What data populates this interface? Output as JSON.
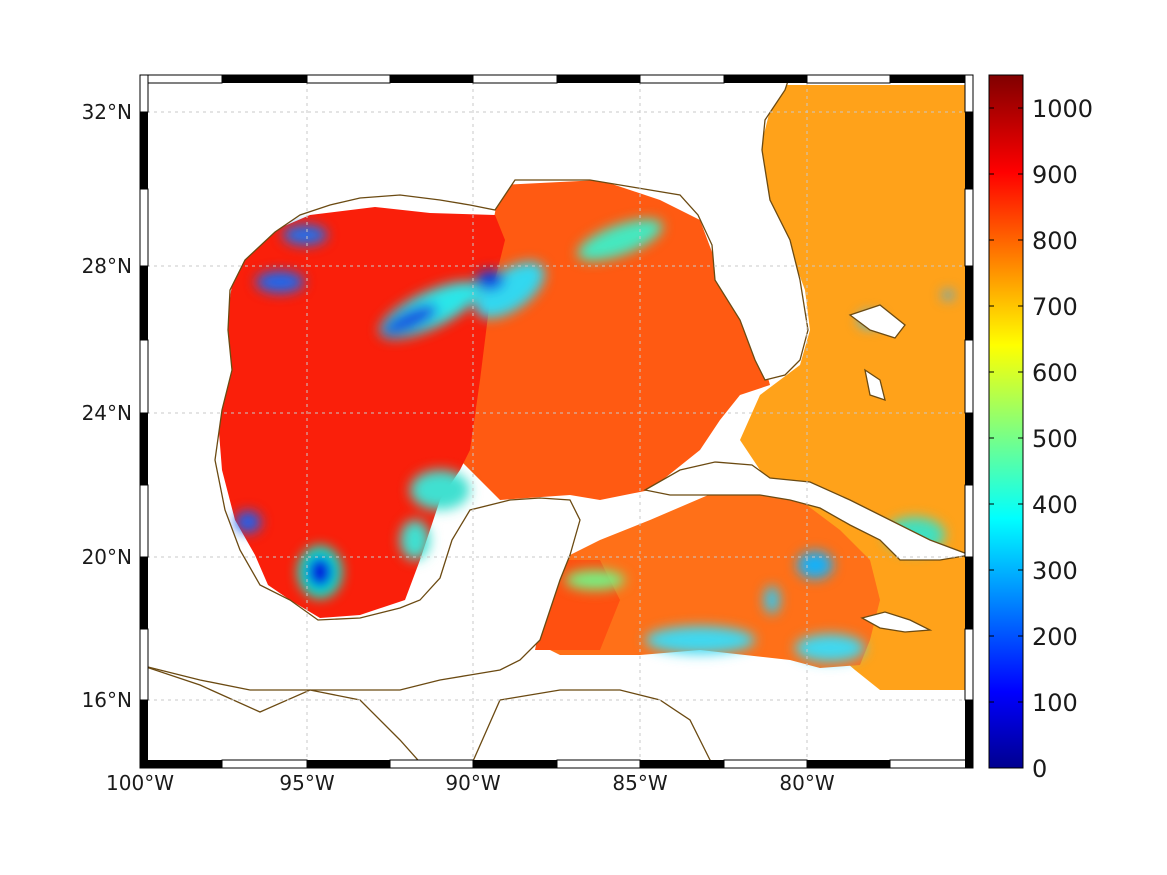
{
  "map": {
    "projection": "mercator",
    "lon_range": [
      -100,
      -75
    ],
    "lat_range": [
      14.2,
      33
    ],
    "grid": true,
    "frame": "black-white alternating border",
    "coastline_color": "#6b4a12",
    "land_color": "#ffffff",
    "x_ticks": [
      {
        "lon": -100,
        "label": "100°W"
      },
      {
        "lon": -95,
        "label": "95°W"
      },
      {
        "lon": -90,
        "label": "90°W"
      },
      {
        "lon": -85,
        "label": "85°W"
      },
      {
        "lon": -80,
        "label": "80°W"
      }
    ],
    "y_ticks": [
      {
        "lat": 32,
        "label": "32°N"
      },
      {
        "lat": 28,
        "label": "28°N"
      },
      {
        "lat": 24,
        "label": "24°N"
      },
      {
        "lat": 20,
        "label": "20°N"
      },
      {
        "lat": 16,
        "label": "16°N"
      }
    ]
  },
  "colorbar": {
    "colormap": "jet",
    "range": [
      0,
      1050
    ],
    "ticks": [
      "0",
      "100",
      "200",
      "300",
      "400",
      "500",
      "600",
      "700",
      "800",
      "900",
      "1000"
    ],
    "tick_values": [
      0,
      100,
      200,
      300,
      400,
      500,
      600,
      700,
      800,
      900,
      1000
    ]
  },
  "field": {
    "west_gulf_value": 920,
    "central_gulf_value": 860,
    "atlantic_value": 740,
    "caribbean_value": 800,
    "low_patches": [
      {
        "lon": -94.5,
        "lat": 19.6,
        "value": 150
      },
      {
        "lon": -91.2,
        "lat": 26.6,
        "value": 250
      },
      {
        "lon": -88.5,
        "lat": 27.2,
        "value": 330
      },
      {
        "lon": -95.5,
        "lat": 28.9,
        "value": 350
      },
      {
        "lon": -95.8,
        "lat": 27.7,
        "value": 300
      },
      {
        "lon": -97.5,
        "lat": 21.0,
        "value": 350
      },
      {
        "lon": -84.5,
        "lat": 17.5,
        "value": 400
      },
      {
        "lon": -80.2,
        "lat": 19.9,
        "value": 300
      },
      {
        "lon": -79.0,
        "lat": 17.8,
        "value": 350
      },
      {
        "lon": -76.2,
        "lat": 20.7,
        "value": 420
      }
    ]
  }
}
